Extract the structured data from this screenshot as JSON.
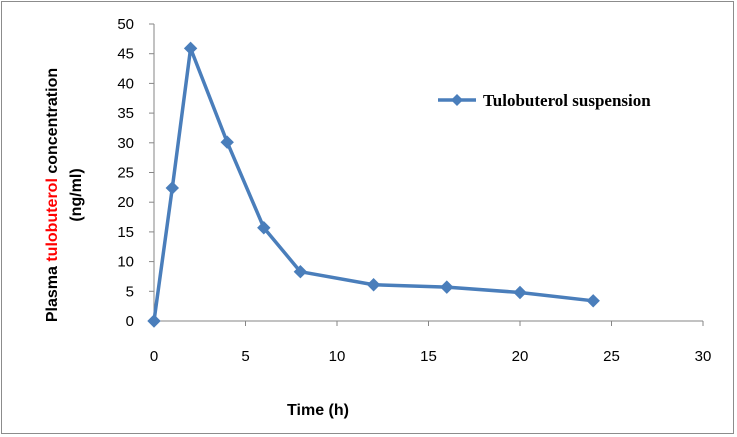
{
  "chart_data": {
    "type": "scatter",
    "title": "",
    "xlabel": "Time (h)",
    "ylabel": {
      "line1_prefix": "Plasma ",
      "line1_highlight": "tulobuterol",
      "line1_suffix": " concentration",
      "line2": "(ng/ml)",
      "highlight_color": "#ff0000"
    },
    "xlim": [
      0,
      30
    ],
    "ylim": [
      0,
      50
    ],
    "x_ticks": [
      0,
      5,
      10,
      15,
      20,
      25,
      30
    ],
    "y_ticks": [
      0,
      5,
      10,
      15,
      20,
      25,
      30,
      35,
      40,
      45,
      50
    ],
    "grid": false,
    "legend_position": "top-right",
    "series": [
      {
        "name": "Tulobuterol suspension",
        "color": "#4a7ebb",
        "marker": "diamond",
        "x": [
          0,
          1,
          2,
          4,
          6,
          8,
          12,
          16,
          20,
          24
        ],
        "y": [
          0,
          22.4,
          45.9,
          30.1,
          15.7,
          8.3,
          6.1,
          5.7,
          4.8,
          3.4
        ]
      }
    ]
  }
}
